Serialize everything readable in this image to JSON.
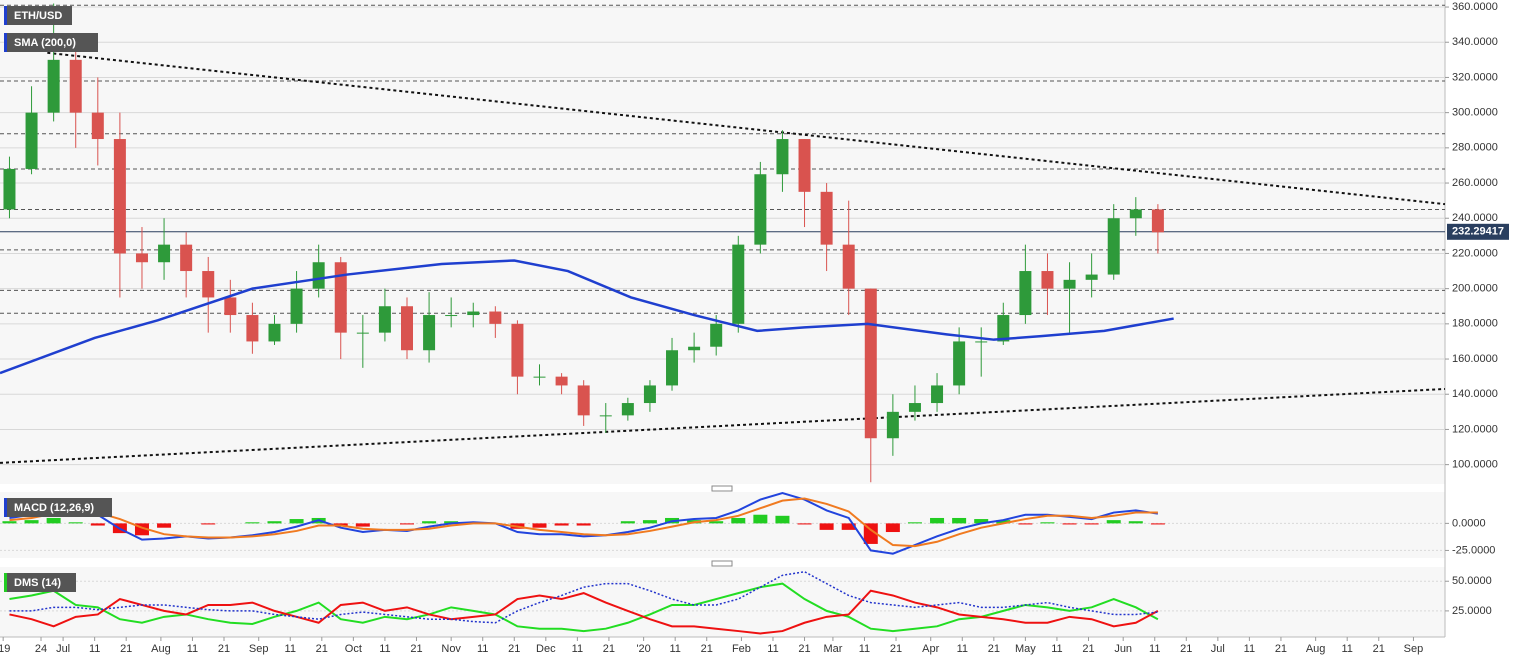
{
  "chart_data": [
    {
      "type": "candlestick",
      "title": "ETH/USD",
      "x": [
        3,
        10,
        17,
        24,
        31,
        38,
        45,
        52,
        59,
        66,
        73,
        80,
        87,
        94,
        101,
        108,
        115,
        122,
        129,
        136,
        143,
        150,
        157,
        164,
        171,
        178,
        185,
        192,
        199,
        206,
        213,
        220,
        227,
        234,
        241,
        248,
        255,
        262,
        269,
        276,
        283,
        290,
        297,
        304,
        311,
        318,
        325,
        332,
        339,
        346,
        353,
        360,
        367
      ],
      "open": [
        245,
        268,
        300,
        330,
        300,
        285,
        220,
        215,
        225,
        210,
        195,
        185,
        170,
        180,
        200,
        215,
        175,
        175,
        190,
        165,
        185,
        185,
        187,
        180,
        150,
        150,
        145,
        128,
        128,
        135,
        145,
        165,
        167,
        180,
        225,
        265,
        285,
        255,
        225,
        200,
        115,
        130,
        135,
        145,
        170,
        170,
        185,
        210,
        200,
        205,
        208,
        240,
        245
      ],
      "high": [
        275,
        315,
        362,
        340,
        320,
        300,
        235,
        240,
        232,
        218,
        205,
        192,
        185,
        210,
        225,
        218,
        185,
        200,
        195,
        198,
        195,
        192,
        190,
        182,
        157,
        152,
        148,
        135,
        138,
        148,
        172,
        175,
        185,
        230,
        272,
        290,
        285,
        260,
        250,
        200,
        140,
        145,
        152,
        178,
        178,
        192,
        225,
        220,
        215,
        220,
        248,
        252,
        248
      ],
      "low": [
        240,
        265,
        295,
        280,
        270,
        195,
        200,
        205,
        195,
        175,
        175,
        163,
        168,
        175,
        195,
        160,
        155,
        170,
        160,
        158,
        178,
        178,
        172,
        140,
        145,
        140,
        122,
        118,
        125,
        130,
        142,
        158,
        162,
        175,
        220,
        255,
        235,
        210,
        185,
        90,
        105,
        125,
        130,
        140,
        150,
        168,
        180,
        185,
        175,
        195,
        205,
        230,
        220
      ],
      "close": [
        268,
        300,
        330,
        300,
        285,
        220,
        215,
        225,
        210,
        195,
        185,
        170,
        180,
        200,
        215,
        175,
        175,
        190,
        165,
        185,
        185,
        187,
        180,
        150,
        150,
        145,
        128,
        128,
        135,
        145,
        165,
        167,
        180,
        225,
        265,
        285,
        255,
        225,
        200,
        115,
        130,
        135,
        145,
        170,
        170,
        185,
        210,
        200,
        205,
        208,
        240,
        245,
        232
      ],
      "up_color": "#2e9a3a",
      "down_color": "#d9534f",
      "series": [
        {
          "name": "SMA (200,0)",
          "color": "#1f3fcf",
          "x": [
            0,
            30,
            50,
            80,
            110,
            140,
            163,
            180,
            200,
            220,
            240,
            255,
            275,
            300,
            315,
            330,
            350,
            372
          ],
          "values": [
            152,
            172,
            182,
            200,
            208,
            214,
            216,
            210,
            195,
            185,
            176,
            178,
            180,
            174,
            171,
            173,
            176,
            183
          ]
        }
      ],
      "levels": [
        361,
        318,
        288,
        268,
        245,
        222,
        199,
        186
      ],
      "trendlines": [
        {
          "x": [
            15,
            458
          ],
          "y": [
            334,
            248
          ]
        },
        {
          "x": [
            0,
            458
          ],
          "y": [
            101,
            143
          ]
        }
      ],
      "last_price": 232.29417,
      "ylim": [
        89,
        364
      ],
      "yticks": [
        {
          "value": 100,
          "label": "100.0000"
        },
        {
          "value": 120,
          "label": "120.0000"
        },
        {
          "value": 140,
          "label": "140.0000"
        },
        {
          "value": 160,
          "label": "160.0000"
        },
        {
          "value": 180,
          "label": "180.0000"
        },
        {
          "value": 200,
          "label": "200.0000"
        },
        {
          "value": 220,
          "label": "220.0000"
        },
        {
          "value": 240,
          "label": "240.0000"
        },
        {
          "value": 260,
          "label": "260.0000"
        },
        {
          "value": 280,
          "label": "280.0000"
        },
        {
          "value": 300,
          "label": "300.0000"
        },
        {
          "value": 320,
          "label": "320.0000"
        },
        {
          "value": 340,
          "label": "340.0000"
        },
        {
          "value": 360,
          "label": "360.0000"
        }
      ]
    },
    {
      "type": "line",
      "title": "MACD (12,26,9)",
      "x": [
        3,
        10,
        17,
        24,
        31,
        38,
        45,
        52,
        59,
        66,
        73,
        80,
        87,
        94,
        101,
        108,
        115,
        122,
        129,
        136,
        143,
        150,
        157,
        164,
        171,
        178,
        185,
        192,
        199,
        206,
        213,
        220,
        227,
        234,
        241,
        248,
        255,
        262,
        269,
        276,
        283,
        290,
        297,
        304,
        311,
        318,
        325,
        332,
        339,
        346,
        353,
        360,
        367
      ],
      "series": [
        {
          "style": "histogram",
          "color": "#22cc22",
          "negative_color": "#ee1111",
          "values": [
            2,
            3,
            5,
            1,
            -2,
            -9,
            -11,
            -4,
            0,
            -1,
            0,
            1,
            2,
            4,
            5,
            -2,
            -3,
            0,
            -1,
            2,
            2,
            1,
            0,
            -5,
            -4,
            -2,
            -2,
            0,
            2,
            3,
            5,
            3,
            2,
            5,
            8,
            7,
            -1,
            -6,
            -6,
            -19,
            -8,
            1,
            5,
            5,
            4,
            3,
            -1,
            1,
            -1,
            -1,
            3,
            2,
            -1
          ]
        },
        {
          "style": "line",
          "color": "#2244dd",
          "values": [
            5,
            8,
            14,
            12,
            8,
            -5,
            -15,
            -14,
            -12,
            -14,
            -13,
            -11,
            -8,
            -3,
            3,
            -4,
            -8,
            -6,
            -7,
            -3,
            0,
            1,
            0,
            -8,
            -10,
            -10,
            -12,
            -11,
            -8,
            -4,
            2,
            4,
            5,
            12,
            22,
            28,
            22,
            12,
            5,
            -25,
            -28,
            -20,
            -12,
            -5,
            0,
            3,
            8,
            8,
            6,
            4,
            10,
            12,
            9
          ]
        },
        {
          "style": "line",
          "color": "#f07a20",
          "values": [
            3,
            5,
            9,
            11,
            10,
            4,
            -4,
            -10,
            -12,
            -13,
            -13,
            -12,
            -10,
            -7,
            -2,
            -2,
            -5,
            -6,
            -6,
            -5,
            -2,
            0,
            0,
            -3,
            -6,
            -8,
            -10,
            -11,
            -10,
            -7,
            -3,
            1,
            3,
            7,
            14,
            21,
            23,
            18,
            11,
            -6,
            -20,
            -21,
            -17,
            -10,
            -4,
            0,
            4,
            7,
            7,
            5,
            7,
            10,
            10
          ]
        }
      ],
      "ylim": [
        -32,
        29
      ],
      "yticks": [
        {
          "value": 0,
          "label": "0.0000"
        },
        {
          "value": -25,
          "label": "-25.0000"
        }
      ]
    },
    {
      "type": "line",
      "title": "DMS (14)",
      "x": [
        3,
        10,
        17,
        24,
        31,
        38,
        45,
        52,
        59,
        66,
        73,
        80,
        87,
        94,
        101,
        108,
        115,
        122,
        129,
        136,
        143,
        150,
        157,
        164,
        171,
        178,
        185,
        192,
        199,
        206,
        213,
        220,
        227,
        234,
        241,
        248,
        255,
        262,
        269,
        276,
        283,
        290,
        297,
        304,
        311,
        318,
        325,
        332,
        339,
        346,
        353,
        360,
        367
      ],
      "series": [
        {
          "style": "line",
          "color": "#22dd22",
          "values": [
            35,
            38,
            42,
            30,
            28,
            18,
            15,
            20,
            22,
            18,
            15,
            14,
            20,
            25,
            32,
            18,
            15,
            20,
            18,
            22,
            28,
            25,
            22,
            12,
            10,
            10,
            8,
            10,
            15,
            22,
            30,
            30,
            35,
            40,
            45,
            48,
            35,
            25,
            20,
            10,
            8,
            10,
            12,
            18,
            20,
            25,
            30,
            28,
            25,
            28,
            35,
            28,
            18
          ]
        },
        {
          "style": "line",
          "color": "#ee1111",
          "values": [
            22,
            18,
            12,
            20,
            22,
            35,
            30,
            25,
            22,
            30,
            30,
            32,
            25,
            20,
            15,
            30,
            32,
            25,
            28,
            22,
            18,
            20,
            22,
            35,
            38,
            35,
            40,
            32,
            25,
            18,
            12,
            12,
            10,
            8,
            6,
            8,
            15,
            20,
            22,
            42,
            38,
            32,
            28,
            22,
            20,
            18,
            15,
            15,
            20,
            18,
            12,
            15,
            25
          ]
        },
        {
          "style": "dotted",
          "color": "#2233cc",
          "values": [
            25,
            25,
            28,
            28,
            26,
            28,
            30,
            30,
            28,
            26,
            25,
            25,
            22,
            20,
            18,
            22,
            24,
            22,
            20,
            18,
            18,
            16,
            15,
            25,
            32,
            38,
            45,
            48,
            48,
            42,
            35,
            30,
            30,
            35,
            45,
            55,
            58,
            48,
            38,
            32,
            30,
            28,
            30,
            32,
            28,
            28,
            30,
            32,
            28,
            25,
            22,
            22,
            24
          ]
        }
      ],
      "ylim": [
        3,
        62
      ],
      "yticks": [
        {
          "value": 50,
          "label": "50.0000"
        },
        {
          "value": 25,
          "label": "25.0000"
        }
      ],
      "xlim": [
        0,
        458
      ],
      "xticks": [
        {
          "value": 1,
          "label": "'19"
        },
        {
          "value": 13,
          "label": "24"
        },
        {
          "value": 20,
          "label": "Jul"
        },
        {
          "value": 30,
          "label": "11"
        },
        {
          "value": 40,
          "label": "21"
        },
        {
          "value": 51,
          "label": "Aug"
        },
        {
          "value": 61,
          "label": "11"
        },
        {
          "value": 71,
          "label": "21"
        },
        {
          "value": 82,
          "label": "Sep"
        },
        {
          "value": 92,
          "label": "11"
        },
        {
          "value": 102,
          "label": "21"
        },
        {
          "value": 112,
          "label": "Oct"
        },
        {
          "value": 122,
          "label": "11"
        },
        {
          "value": 132,
          "label": "21"
        },
        {
          "value": 143,
          "label": "Nov"
        },
        {
          "value": 153,
          "label": "11"
        },
        {
          "value": 163,
          "label": "21"
        },
        {
          "value": 173,
          "label": "Dec"
        },
        {
          "value": 183,
          "label": "11"
        },
        {
          "value": 193,
          "label": "21"
        },
        {
          "value": 204,
          "label": "'20"
        },
        {
          "value": 214,
          "label": "11"
        },
        {
          "value": 224,
          "label": "21"
        },
        {
          "value": 235,
          "label": "Feb"
        },
        {
          "value": 245,
          "label": "11"
        },
        {
          "value": 255,
          "label": "21"
        },
        {
          "value": 264,
          "label": "Mar"
        },
        {
          "value": 274,
          "label": "11"
        },
        {
          "value": 284,
          "label": "21"
        },
        {
          "value": 295,
          "label": "Apr"
        },
        {
          "value": 305,
          "label": "11"
        },
        {
          "value": 315,
          "label": "21"
        },
        {
          "value": 325,
          "label": "May"
        },
        {
          "value": 335,
          "label": "11"
        },
        {
          "value": 345,
          "label": "21"
        },
        {
          "value": 356,
          "label": "Jun"
        },
        {
          "value": 366,
          "label": "11"
        },
        {
          "value": 376,
          "label": "21"
        },
        {
          "value": 386,
          "label": "Jul"
        },
        {
          "value": 396,
          "label": "11"
        },
        {
          "value": 406,
          "label": "21"
        },
        {
          "value": 417,
          "label": "Aug"
        },
        {
          "value": 427,
          "label": "11"
        },
        {
          "value": 437,
          "label": "21"
        },
        {
          "value": 448,
          "label": "Sep"
        }
      ]
    }
  ]
}
